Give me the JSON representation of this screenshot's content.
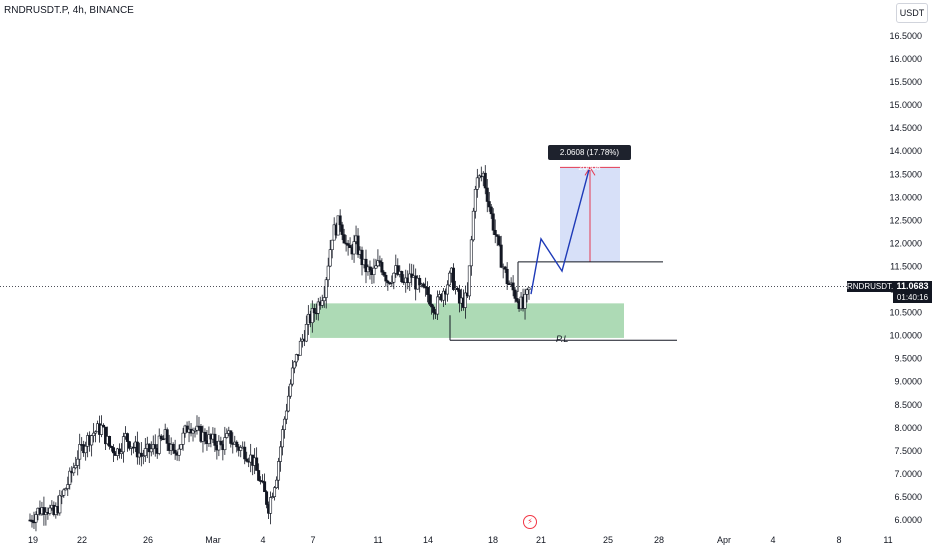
{
  "header": {
    "title": "RNDRUSDT.P, 4h, BINANCE"
  },
  "currency_button": "USDT",
  "price_label": {
    "symbol": "RNDRUSDT.P",
    "price": "11.0683",
    "countdown": "01:40:16",
    "color": "#131722"
  },
  "measure_label": "2.0608 (17.78%) 20608",
  "pivot_label": "P.L",
  "icons": {
    "alert": "lightning-icon"
  },
  "colors": {
    "candle_up": "#131722",
    "candle_down": "#131722",
    "zone": "#9fd4a8",
    "projection_box": "#c9d6f5",
    "path": "#1e3ab8",
    "target_line": "#e53950"
  },
  "chart_data": {
    "type": "candlestick",
    "timeframe": "4h",
    "ylim": [
      5.8,
      16.8
    ],
    "y_ticks": [
      "16.5000",
      "16.0000",
      "15.5000",
      "15.0000",
      "14.5000",
      "14.0000",
      "13.5000",
      "13.0000",
      "12.5000",
      "12.0000",
      "11.5000",
      "11.0000",
      "10.5000",
      "10.0000",
      "9.5000",
      "9.0000",
      "8.5000",
      "8.0000",
      "7.5000",
      "7.0000",
      "6.5000",
      "6.0000"
    ],
    "x_ticks": [
      "19",
      "22",
      "26",
      "Mar",
      "4",
      "7",
      "11",
      "14",
      "18",
      "21",
      "25",
      "28",
      "Apr",
      "4",
      "8",
      "11"
    ],
    "closes_sampled": [
      6.0,
      6.2,
      6.3,
      6.1,
      6.5,
      6.9,
      7.4,
      7.7,
      7.9,
      8.0,
      7.6,
      7.5,
      7.8,
      7.6,
      7.4,
      7.5,
      7.6,
      7.8,
      7.4,
      7.7,
      8.1,
      7.9,
      7.8,
      7.7,
      7.6,
      7.8,
      7.6,
      7.5,
      7.3,
      6.8,
      6.3,
      7.0,
      8.2,
      9.2,
      9.8,
      10.3,
      10.6,
      11.0,
      12.2,
      12.5,
      11.8,
      12.0,
      11.5,
      11.3,
      11.6,
      11.2,
      11.4,
      11.1,
      11.3,
      11.0,
      10.9,
      10.6,
      11.0,
      11.3,
      10.7,
      10.8,
      13.3,
      13.5,
      12.6,
      11.8,
      11.2,
      10.9,
      10.6,
      11.1
    ],
    "support_zone": [
      9.95,
      10.7
    ],
    "pivot_low": 9.9,
    "entry": 11.6,
    "target": 13.65,
    "current_price": 11.0683
  }
}
